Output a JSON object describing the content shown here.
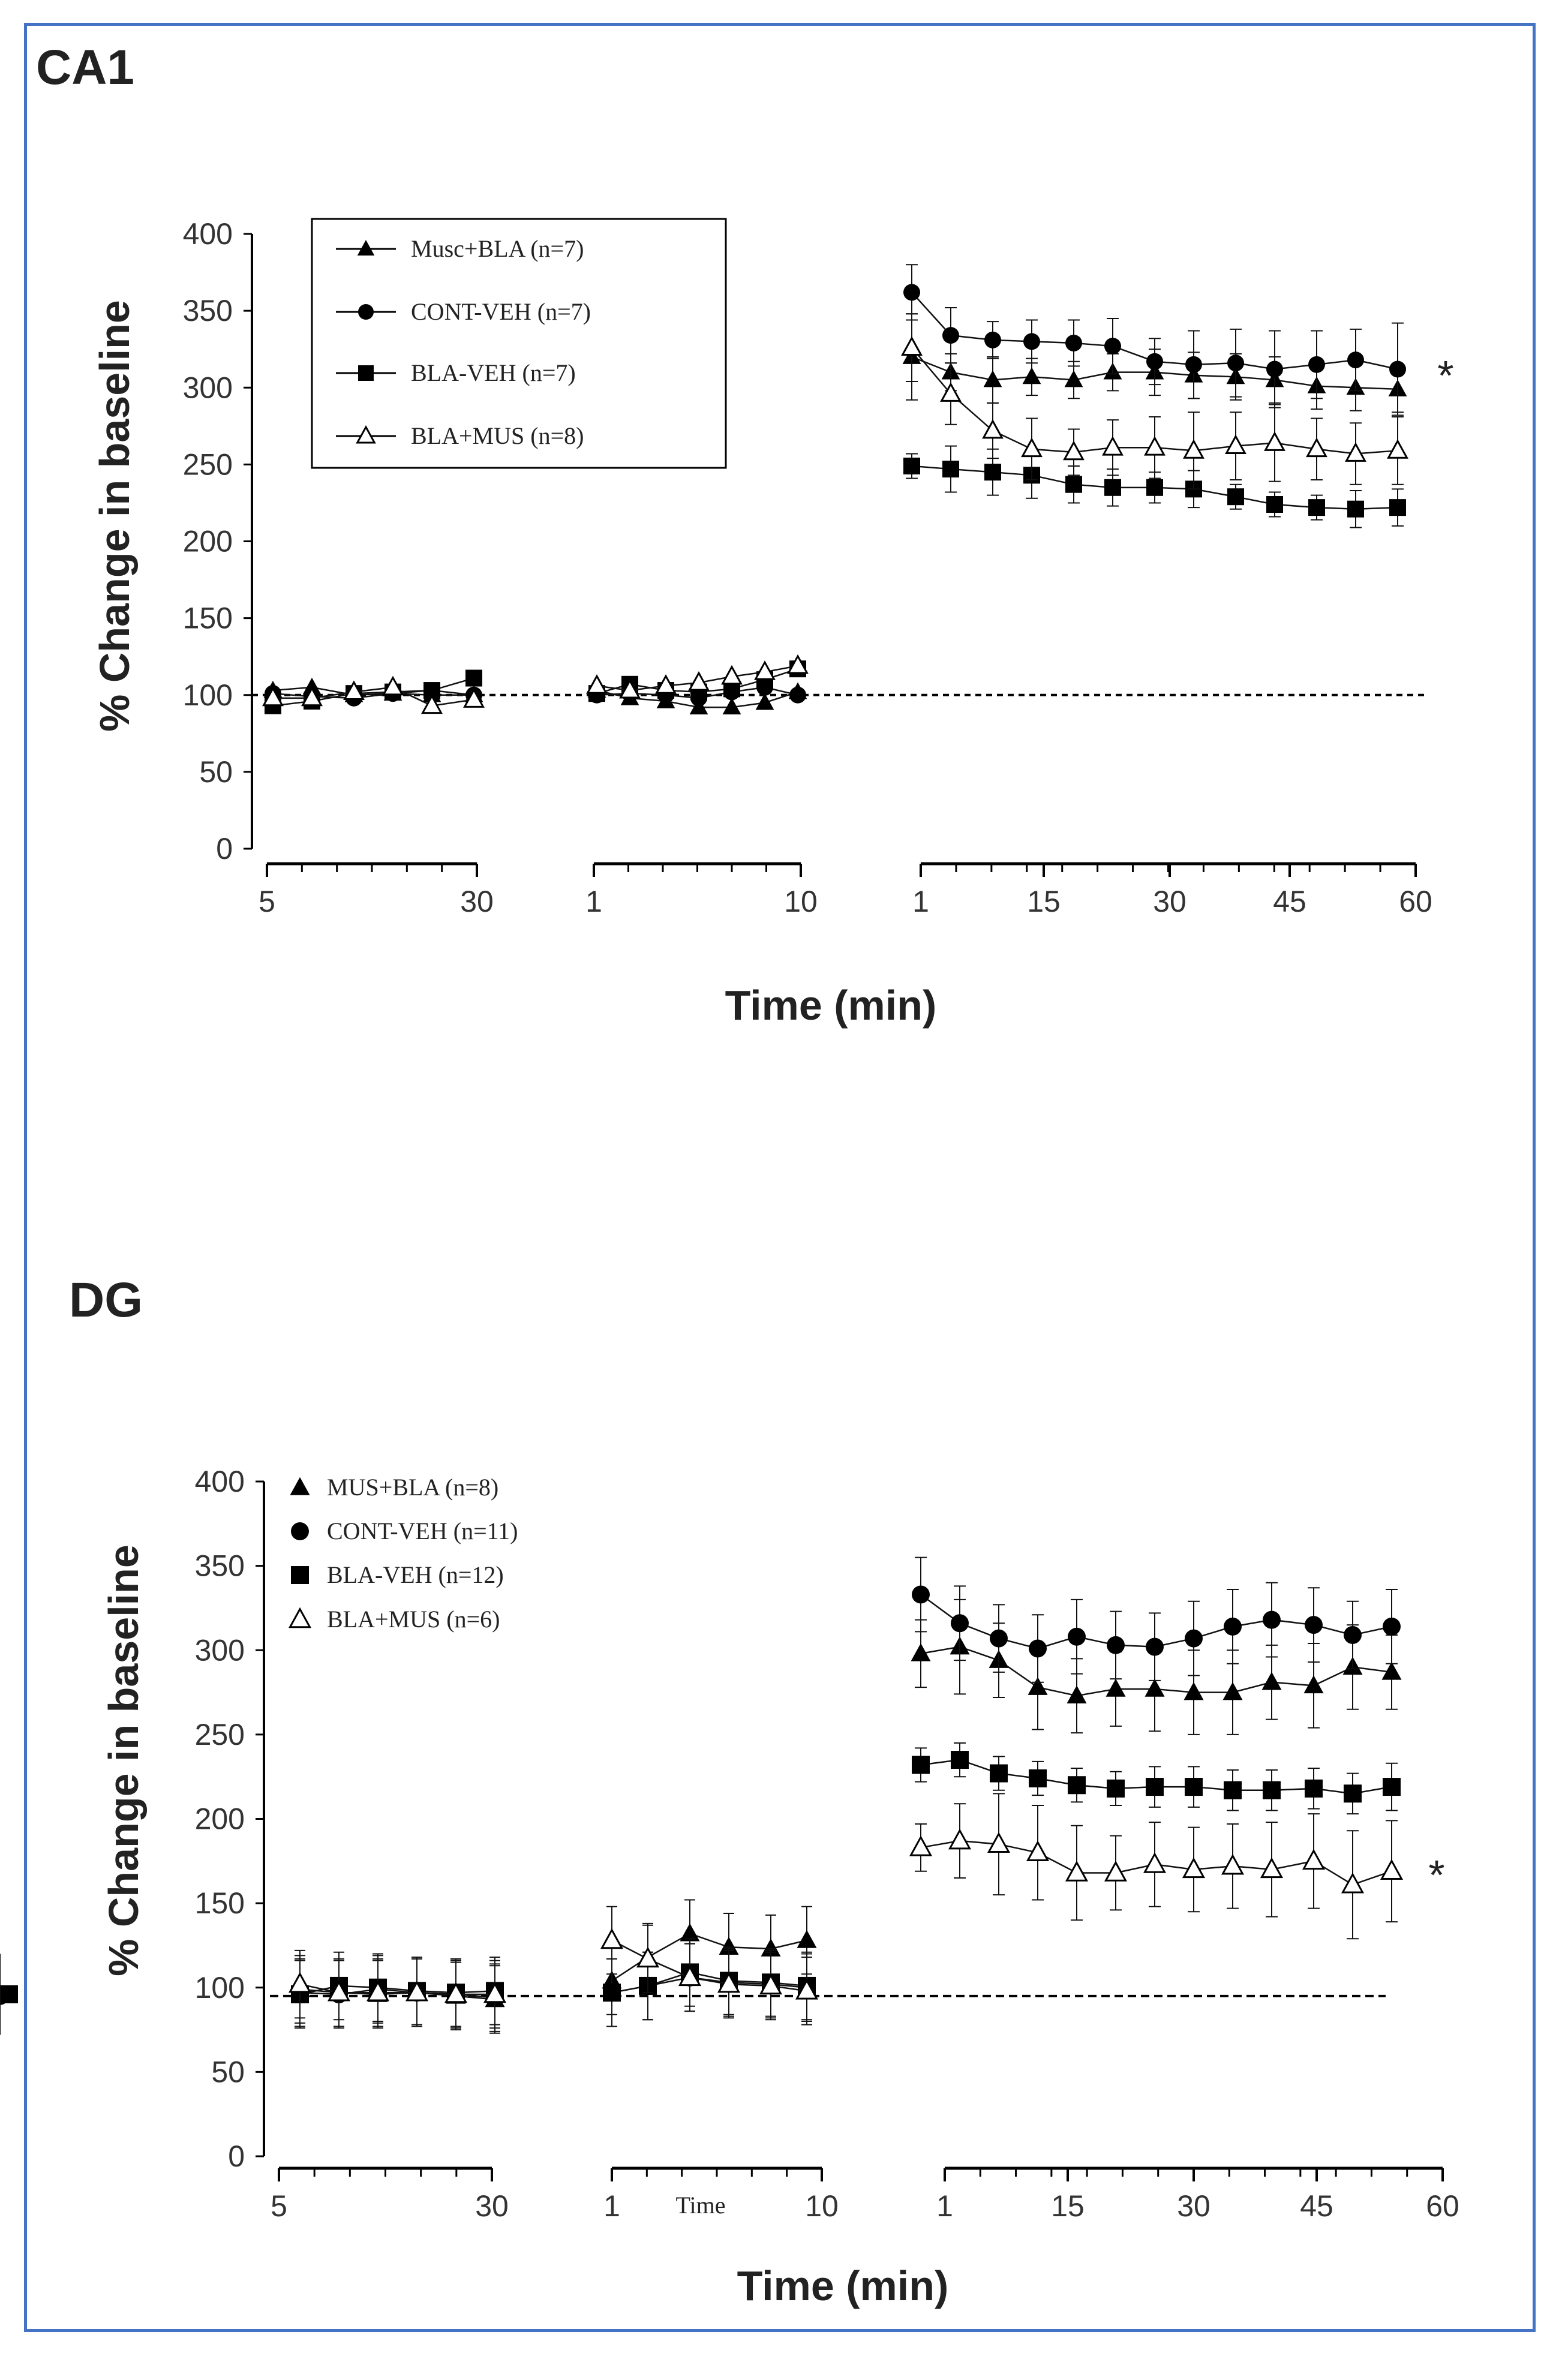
{
  "chart_data": [
    {
      "panel": "CA1",
      "type": "line",
      "xlabel": "Time (min)",
      "ylabel": "% Change in baseline",
      "ylim": [
        0,
        400
      ],
      "yticks": [
        0,
        50,
        100,
        150,
        200,
        250,
        300,
        350,
        400
      ],
      "segments": [
        {
          "ticks": [
            "5",
            "30"
          ]
        },
        {
          "ticks": [
            "1",
            "10"
          ]
        },
        {
          "ticks": [
            "1",
            "15",
            "30",
            "45",
            "60"
          ]
        }
      ],
      "baseline": 100,
      "legend_placement": "top-left, boxed",
      "significance": "*",
      "series": [
        {
          "name": "Musc+BLA (n=7)",
          "marker": "triangle-filled",
          "seg1": [
            103,
            105,
            100,
            101,
            100,
            100
          ],
          "seg2": [
            103,
            98,
            96,
            92,
            92,
            95,
            102
          ],
          "seg3": [
            320,
            310,
            305,
            307,
            305,
            310,
            310,
            308,
            307,
            305,
            301,
            300,
            299
          ],
          "err3": [
            28,
            12,
            15,
            12,
            12,
            12,
            15,
            15,
            15,
            15,
            15,
            15,
            15
          ]
        },
        {
          "name": "CONT-VEH  (n=7)",
          "marker": "circle-filled",
          "seg1": [
            101,
            99,
            98,
            101,
            103,
            100
          ],
          "seg2": [
            100,
            101,
            100,
            98,
            102,
            105,
            100
          ],
          "seg3": [
            362,
            334,
            331,
            330,
            329,
            327,
            317,
            315,
            316,
            312,
            315,
            318,
            312
          ],
          "err3": [
            18,
            18,
            12,
            14,
            15,
            18,
            15,
            22,
            22,
            25,
            22,
            20,
            30
          ]
        },
        {
          "name": "BLA-VEH  (n=7)",
          "marker": "square-filled",
          "seg1": [
            93,
            96,
            101,
            102,
            103,
            111
          ],
          "seg2": [
            101,
            107,
            103,
            102,
            104,
            110,
            117
          ],
          "seg3": [
            249,
            247,
            245,
            243,
            237,
            235,
            235,
            234,
            229,
            224,
            222,
            221,
            222
          ],
          "err3": [
            8,
            15,
            15,
            15,
            12,
            12,
            10,
            12,
            8,
            8,
            8,
            12,
            12
          ]
        },
        {
          "name": "BLA+MUS (n=8)",
          "marker": "triangle-open",
          "seg1": [
            98,
            98,
            102,
            105,
            93,
            97
          ],
          "seg2": [
            106,
            103,
            106,
            108,
            112,
            115,
            119
          ],
          "seg3": [
            326,
            296,
            272,
            260,
            258,
            261,
            261,
            259,
            262,
            264,
            260,
            257,
            259
          ],
          "err3": [
            22,
            20,
            18,
            20,
            15,
            18,
            20,
            25,
            22,
            25,
            20,
            20,
            22
          ]
        }
      ]
    },
    {
      "panel": "DG",
      "type": "line",
      "xlabel": "Time (min)",
      "ylabel": "% Change in baseline",
      "ylim": [
        0,
        400
      ],
      "yticks": [
        0,
        50,
        100,
        150,
        200,
        250,
        300,
        350,
        400
      ],
      "segments": [
        {
          "ticks": [
            "5",
            "30"
          ]
        },
        {
          "ticks": [
            "1",
            "10"
          ],
          "inner_label": "Time"
        },
        {
          "ticks": [
            "1",
            "15",
            "30",
            "45",
            "60"
          ]
        }
      ],
      "baseline": 95,
      "legend_placement": "top-left",
      "significance": "*",
      "series": [
        {
          "name": "MUS+BLA    (n=8)",
          "marker": "triangle-filled",
          "seg1": [
            99,
            97,
            96,
            97,
            95,
            93,
            92
          ],
          "seg2": [
            104,
            118,
            132,
            124,
            123,
            128
          ],
          "seg3": [
            298,
            302,
            294,
            278,
            273,
            277,
            277,
            275,
            275,
            281,
            279,
            290,
            287
          ],
          "err3": [
            20,
            28,
            22,
            25,
            22,
            22,
            25,
            25,
            25,
            22,
            25,
            25,
            22
          ]
        },
        {
          "name": "CONT-VEH   (n=11)",
          "marker": "circle-filled",
          "seg1": [
            97,
            96,
            99,
            97,
            96,
            94,
            95
          ],
          "seg2": [
            97,
            101,
            106,
            103,
            102,
            100
          ],
          "seg3": [
            333,
            316,
            307,
            301,
            308,
            303,
            302,
            307,
            314,
            318,
            315,
            309,
            314
          ],
          "err3": [
            22,
            22,
            20,
            20,
            22,
            20,
            20,
            22,
            22,
            22,
            22,
            20,
            22
          ]
        },
        {
          "name": "BLA-VEH   (n=12)",
          "marker": "square-filled",
          "seg1": [
            96,
            101,
            100,
            98,
            97,
            98,
            96
          ],
          "seg2": [
            97,
            101,
            109,
            104,
            103,
            101
          ],
          "seg3": [
            232,
            235,
            227,
            224,
            220,
            218,
            219,
            219,
            217,
            217,
            218,
            215,
            219
          ],
          "err3": [
            10,
            10,
            10,
            10,
            10,
            10,
            12,
            12,
            12,
            12,
            12,
            12,
            14
          ]
        },
        {
          "name": "BLA+MUS  (n=6)",
          "marker": "triangle-open",
          "seg1": [
            102,
            97,
            97,
            97,
            96,
            96,
            100
          ],
          "seg2": [
            128,
            117,
            106,
            102,
            101,
            98
          ],
          "seg3": [
            183,
            187,
            185,
            180,
            168,
            168,
            173,
            170,
            172,
            170,
            175,
            161,
            169
          ],
          "err3": [
            14,
            22,
            30,
            28,
            28,
            22,
            25,
            25,
            25,
            28,
            28,
            32,
            30
          ]
        }
      ]
    }
  ]
}
